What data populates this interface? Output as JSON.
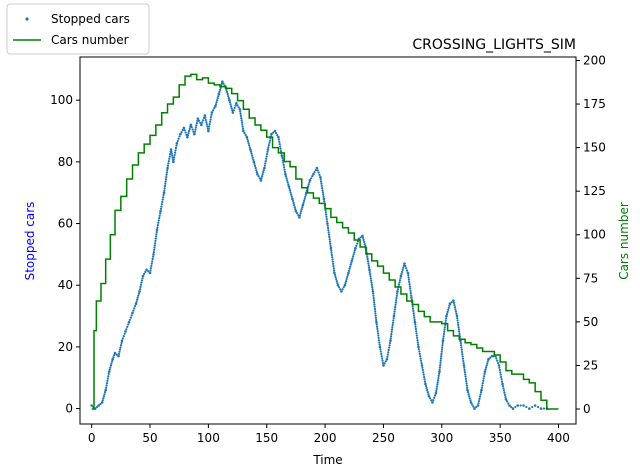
{
  "chart_data": {
    "type": "scatter",
    "title": "CROSSING_LIGHTS_SIM",
    "xlabel": "Time",
    "ylabel_left": "Stopped cars",
    "ylabel_right": "Cars number",
    "xlim": [
      -10,
      415
    ],
    "ylim_left": [
      -5,
      114
    ],
    "ylim_right": [
      -8.6,
      202
    ],
    "x_ticks": [
      0,
      50,
      100,
      150,
      200,
      250,
      300,
      350,
      400
    ],
    "y_ticks_left": [
      0,
      20,
      40,
      60,
      80,
      100
    ],
    "y_ticks_right": [
      0,
      25,
      50,
      75,
      100,
      125,
      150,
      175,
      200
    ],
    "grid": false,
    "legend_placement": "top-left-outside",
    "series": [
      {
        "name": "Stopped cars",
        "kind": "scatter",
        "axis": "left",
        "color": "#1f77b4",
        "points": [
          [
            0,
            1
          ],
          [
            3,
            0
          ],
          [
            6,
            1
          ],
          [
            9,
            2
          ],
          [
            12,
            6
          ],
          [
            15,
            12
          ],
          [
            18,
            16
          ],
          [
            20,
            18
          ],
          [
            23,
            17
          ],
          [
            26,
            22
          ],
          [
            29,
            25
          ],
          [
            32,
            28
          ],
          [
            35,
            31
          ],
          [
            38,
            34
          ],
          [
            41,
            38
          ],
          [
            44,
            43
          ],
          [
            47,
            45
          ],
          [
            50,
            44
          ],
          [
            53,
            50
          ],
          [
            56,
            58
          ],
          [
            59,
            64
          ],
          [
            62,
            70
          ],
          [
            65,
            78
          ],
          [
            68,
            84
          ],
          [
            70,
            80
          ],
          [
            73,
            86
          ],
          [
            76,
            89
          ],
          [
            79,
            91
          ],
          [
            82,
            88
          ],
          [
            85,
            92
          ],
          [
            88,
            89
          ],
          [
            91,
            94
          ],
          [
            94,
            92
          ],
          [
            97,
            95
          ],
          [
            100,
            90
          ],
          [
            103,
            96
          ],
          [
            106,
            98
          ],
          [
            109,
            102
          ],
          [
            112,
            106
          ],
          [
            115,
            104
          ],
          [
            118,
            100
          ],
          [
            121,
            96
          ],
          [
            124,
            99
          ],
          [
            127,
            97
          ],
          [
            130,
            90
          ],
          [
            133,
            88
          ],
          [
            136,
            84
          ],
          [
            139,
            80
          ],
          [
            142,
            76
          ],
          [
            145,
            74
          ],
          [
            148,
            78
          ],
          [
            151,
            84
          ],
          [
            154,
            89
          ],
          [
            157,
            90
          ],
          [
            160,
            88
          ],
          [
            163,
            82
          ],
          [
            166,
            76
          ],
          [
            169,
            72
          ],
          [
            172,
            68
          ],
          [
            175,
            64
          ],
          [
            178,
            62
          ],
          [
            181,
            66
          ],
          [
            184,
            70
          ],
          [
            187,
            74
          ],
          [
            190,
            76
          ],
          [
            193,
            78
          ],
          [
            196,
            75
          ],
          [
            199,
            68
          ],
          [
            202,
            60
          ],
          [
            205,
            52
          ],
          [
            208,
            44
          ],
          [
            211,
            40
          ],
          [
            214,
            38
          ],
          [
            217,
            40
          ],
          [
            220,
            44
          ],
          [
            223,
            48
          ],
          [
            226,
            52
          ],
          [
            229,
            55
          ],
          [
            232,
            56
          ],
          [
            235,
            52
          ],
          [
            238,
            45
          ],
          [
            241,
            38
          ],
          [
            244,
            28
          ],
          [
            247,
            20
          ],
          [
            250,
            14
          ],
          [
            253,
            16
          ],
          [
            256,
            22
          ],
          [
            259,
            30
          ],
          [
            262,
            38
          ],
          [
            265,
            43
          ],
          [
            268,
            47
          ],
          [
            271,
            44
          ],
          [
            274,
            36
          ],
          [
            277,
            28
          ],
          [
            280,
            20
          ],
          [
            283,
            14
          ],
          [
            286,
            8
          ],
          [
            289,
            4
          ],
          [
            292,
            2
          ],
          [
            295,
            5
          ],
          [
            298,
            12
          ],
          [
            301,
            22
          ],
          [
            304,
            30
          ],
          [
            307,
            34
          ],
          [
            310,
            35
          ],
          [
            313,
            30
          ],
          [
            316,
            22
          ],
          [
            319,
            14
          ],
          [
            322,
            6
          ],
          [
            325,
            2
          ],
          [
            328,
            0
          ],
          [
            331,
            1
          ],
          [
            334,
            6
          ],
          [
            337,
            12
          ],
          [
            340,
            16
          ],
          [
            343,
            17
          ],
          [
            346,
            17
          ],
          [
            349,
            14
          ],
          [
            352,
            8
          ],
          [
            355,
            3
          ],
          [
            358,
            1
          ],
          [
            361,
            0
          ],
          [
            365,
            1
          ],
          [
            370,
            1
          ],
          [
            375,
            0
          ],
          [
            380,
            1
          ],
          [
            385,
            0
          ],
          [
            390,
            0
          ]
        ]
      },
      {
        "name": "Cars number",
        "kind": "line",
        "axis": "right",
        "color": "#008000",
        "points": [
          [
            0,
            0
          ],
          [
            2,
            45
          ],
          [
            4,
            62
          ],
          [
            8,
            72
          ],
          [
            12,
            86
          ],
          [
            16,
            100
          ],
          [
            20,
            114
          ],
          [
            25,
            122
          ],
          [
            30,
            132
          ],
          [
            35,
            140
          ],
          [
            40,
            147
          ],
          [
            45,
            152
          ],
          [
            50,
            157
          ],
          [
            55,
            163
          ],
          [
            60,
            170
          ],
          [
            65,
            175
          ],
          [
            70,
            179
          ],
          [
            75,
            186
          ],
          [
            80,
            191
          ],
          [
            85,
            192
          ],
          [
            90,
            189
          ],
          [
            95,
            190
          ],
          [
            100,
            187
          ],
          [
            105,
            186
          ],
          [
            110,
            185
          ],
          [
            115,
            184
          ],
          [
            120,
            181
          ],
          [
            125,
            177
          ],
          [
            130,
            172
          ],
          [
            135,
            167
          ],
          [
            140,
            163
          ],
          [
            145,
            160
          ],
          [
            150,
            156
          ],
          [
            155,
            150
          ],
          [
            160,
            147
          ],
          [
            165,
            142
          ],
          [
            170,
            139
          ],
          [
            175,
            132
          ],
          [
            180,
            127
          ],
          [
            185,
            124
          ],
          [
            190,
            121
          ],
          [
            195,
            118
          ],
          [
            200,
            115
          ],
          [
            205,
            110
          ],
          [
            210,
            107
          ],
          [
            215,
            104
          ],
          [
            220,
            101
          ],
          [
            225,
            97
          ],
          [
            230,
            93
          ],
          [
            235,
            89
          ],
          [
            240,
            85
          ],
          [
            245,
            82
          ],
          [
            250,
            78
          ],
          [
            255,
            74
          ],
          [
            260,
            70
          ],
          [
            265,
            66
          ],
          [
            270,
            62
          ],
          [
            275,
            60
          ],
          [
            280,
            56
          ],
          [
            285,
            53
          ],
          [
            290,
            50
          ],
          [
            295,
            50
          ],
          [
            300,
            49
          ],
          [
            305,
            45
          ],
          [
            310,
            42
          ],
          [
            315,
            40
          ],
          [
            320,
            38
          ],
          [
            325,
            37
          ],
          [
            330,
            35
          ],
          [
            335,
            33
          ],
          [
            340,
            33
          ],
          [
            345,
            31
          ],
          [
            350,
            27
          ],
          [
            355,
            22
          ],
          [
            360,
            20
          ],
          [
            365,
            20
          ],
          [
            370,
            17
          ],
          [
            375,
            15
          ],
          [
            380,
            10
          ],
          [
            385,
            5
          ],
          [
            390,
            0
          ],
          [
            400,
            0
          ]
        ]
      }
    ]
  }
}
